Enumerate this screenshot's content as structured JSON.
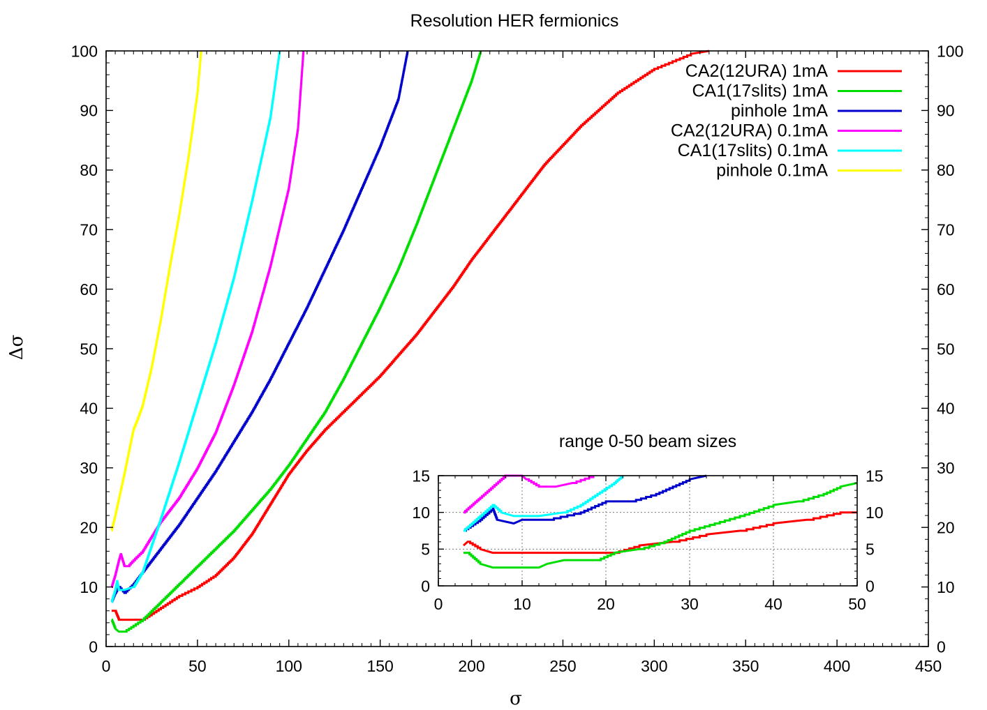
{
  "chart_data": [
    {
      "type": "line",
      "title": "Resolution HER fermionics",
      "xlabel": "σ",
      "ylabel": "Δσ",
      "xlim": [
        0,
        450
      ],
      "ylim": [
        0,
        100
      ],
      "xticks": [
        "0",
        "50",
        "100",
        "150",
        "200",
        "250",
        "300",
        "350",
        "400",
        "450"
      ],
      "yticks": [
        "0",
        "10",
        "20",
        "30",
        "40",
        "50",
        "60",
        "70",
        "80",
        "90",
        "100"
      ],
      "y2ticks": [
        "0",
        "10",
        "20",
        "30",
        "40",
        "50",
        "60",
        "70",
        "80",
        "90",
        "100"
      ],
      "grid": false,
      "legend_position": "top-right",
      "series": [
        {
          "name": "CA2(12URA) 1mA",
          "color": "#ff0000",
          "x": [
            3,
            5,
            7,
            10,
            15,
            20,
            25,
            30,
            40,
            50,
            60,
            70,
            80,
            90,
            100,
            110,
            120,
            130,
            140,
            150,
            160,
            170,
            180,
            190,
            200,
            220,
            240,
            260,
            280,
            300,
            320,
            330
          ],
          "y": [
            6,
            6,
            4.5,
            4.5,
            4.5,
            4.5,
            5.5,
            6.5,
            8.5,
            10,
            12,
            15,
            19,
            24,
            29,
            33,
            36.5,
            39.5,
            42.5,
            45.5,
            49,
            52.5,
            56.5,
            60.5,
            65,
            73,
            81,
            87.5,
            93,
            97,
            99.5,
            100
          ]
        },
        {
          "name": "CA1(17slits) 1mA",
          "color": "#00dd00",
          "x": [
            3,
            5,
            7,
            10,
            15,
            20,
            25,
            30,
            40,
            50,
            60,
            70,
            80,
            90,
            100,
            110,
            120,
            130,
            140,
            150,
            160,
            170,
            180,
            190,
            200,
            205
          ],
          "y": [
            4.5,
            3,
            2.5,
            2.5,
            3.5,
            4.5,
            6,
            7.5,
            10.5,
            13.5,
            16.5,
            19.5,
            23,
            26.5,
            30.5,
            35,
            39.5,
            45,
            51,
            57,
            63.5,
            71,
            79,
            87,
            95,
            100
          ]
        },
        {
          "name": "pinhole 1mA",
          "color": "#0000cc",
          "x": [
            3,
            5,
            7,
            10,
            15,
            20,
            30,
            40,
            50,
            60,
            70,
            80,
            90,
            100,
            110,
            120,
            130,
            140,
            150,
            160,
            165
          ],
          "y": [
            7.5,
            9,
            10,
            9,
            10.5,
            12.5,
            16.5,
            20.5,
            25,
            29.5,
            34.5,
            39.5,
            45,
            51,
            57,
            63.5,
            70,
            77,
            84,
            92,
            100
          ]
        },
        {
          "name": "CA2(12URA) 0.1mA",
          "color": "#ff00ff",
          "x": [
            3,
            5,
            7,
            8,
            10,
            12,
            15,
            20,
            25,
            30,
            40,
            50,
            60,
            70,
            80,
            90,
            100,
            105,
            108
          ],
          "y": [
            10,
            12,
            14.5,
            15.5,
            13.5,
            13.5,
            14.5,
            16,
            18.5,
            21,
            25,
            30,
            36,
            44,
            53,
            64,
            77,
            87,
            100
          ]
        },
        {
          "name": "CA1(17slits) 0.1mA",
          "color": "#00ffff",
          "x": [
            3,
            5,
            6,
            7,
            10,
            15,
            20,
            25,
            30,
            40,
            50,
            60,
            70,
            80,
            90,
            95
          ],
          "y": [
            7.5,
            9.5,
            11,
            9.5,
            9.5,
            10,
            12.5,
            17,
            21.5,
            31,
            41,
            51,
            62,
            75,
            89,
            100
          ]
        },
        {
          "name": "pinhole 0.1mA",
          "color": "#ffff00",
          "x": [
            3,
            5,
            10,
            15,
            17,
            20,
            25,
            30,
            35,
            40,
            45,
            50,
            52
          ],
          "y": [
            19.5,
            22,
            29,
            36.5,
            38,
            40.5,
            47,
            55,
            64,
            72.5,
            82,
            93,
            100
          ]
        }
      ]
    },
    {
      "type": "line",
      "title": "range 0-50 beam sizes",
      "xlim": [
        0,
        50
      ],
      "ylim": [
        0,
        15
      ],
      "xticks": [
        "0",
        "10",
        "20",
        "30",
        "40",
        "50"
      ],
      "yticks": [
        "0",
        "5",
        "10",
        "15"
      ],
      "y2ticks": [
        "0",
        "5",
        "10",
        "15"
      ],
      "grid": true,
      "series": [
        {
          "color": "#ff0000",
          "x": [
            3,
            3.5,
            5,
            6.5,
            8,
            12,
            18,
            20,
            21,
            24,
            28,
            32,
            36,
            40,
            44,
            48,
            50
          ],
          "y": [
            5.5,
            6,
            5,
            4.5,
            4.5,
            4.5,
            4.5,
            4.5,
            4.5,
            5.5,
            6,
            7,
            7.5,
            8.5,
            9,
            10,
            10
          ]
        },
        {
          "color": "#00dd00",
          "x": [
            3,
            3.5,
            5,
            6.5,
            10,
            12,
            13,
            15,
            19,
            21,
            24,
            27,
            30,
            33,
            36,
            40,
            43,
            46,
            48,
            50
          ],
          "y": [
            4.5,
            4.5,
            3,
            2.5,
            2.5,
            2.5,
            3,
            3.5,
            3.5,
            4.5,
            5,
            6,
            7.5,
            8.5,
            9.5,
            11,
            11.5,
            12.5,
            13.5,
            14
          ]
        },
        {
          "color": "#0000cc",
          "x": [
            3,
            5,
            6.5,
            7,
            9,
            10,
            13,
            17,
            20,
            23,
            26,
            28,
            30,
            32
          ],
          "y": [
            7.5,
            9,
            10.5,
            9,
            8.5,
            9,
            9,
            10,
            11.5,
            11.5,
            12.5,
            13.5,
            14.5,
            15
          ]
        },
        {
          "color": "#ff00ff",
          "x": [
            3,
            5,
            6.5,
            8,
            10,
            10.5,
            12,
            14,
            16,
            18.5
          ],
          "y": [
            10,
            12,
            13.5,
            15,
            15,
            14.5,
            13.5,
            13.5,
            14,
            15
          ]
        },
        {
          "color": "#00ffff",
          "x": [
            3,
            5,
            6.5,
            7.5,
            9,
            12,
            15,
            17,
            19,
            21,
            22
          ],
          "y": [
            7.5,
            9.5,
            11,
            10,
            9.5,
            9.5,
            10,
            11,
            12.5,
            14,
            15
          ]
        }
      ]
    }
  ]
}
